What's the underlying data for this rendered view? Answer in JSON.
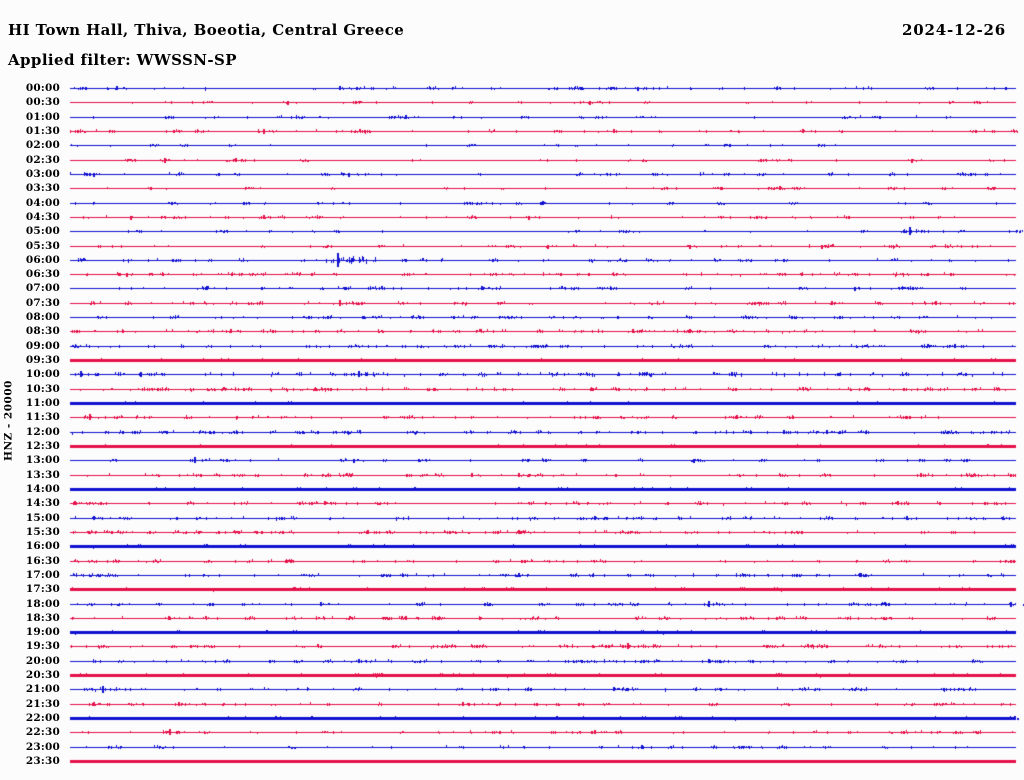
{
  "header": {
    "title": "HI Town Hall, Thiva, Boeotia, Central Greece",
    "date": "2024-12-26",
    "filter": "Applied filter: WWSSN-SP"
  },
  "axis": {
    "channel_label": "HNZ - 20000"
  },
  "colors": {
    "blue": "#1010d0",
    "red": "#e51049",
    "text": "#000000",
    "background": "#fcfcfc"
  },
  "chart_data": {
    "type": "line",
    "subtype": "helicorder-dayplot",
    "title": "HI Town Hall, Thiva, Boeotia, Central Greece",
    "date": "2024-12-26",
    "applied_filter": "WWSSN-SP",
    "channel": "HNZ",
    "scale": 20000,
    "row_duration_minutes": 30,
    "grid": false,
    "legend_position": "none",
    "trace_color_cycle": [
      "blue",
      "red"
    ],
    "rows": [
      {
        "time": "00:00",
        "color": "blue",
        "noise_density": 110,
        "noise_amp": 1.6,
        "bold": false,
        "events": [
          {
            "t": 0.05,
            "amp": 2.5
          },
          {
            "t": 0.285,
            "amp": 2.5
          },
          {
            "t": 0.6,
            "amp": 2
          }
        ]
      },
      {
        "time": "00:30",
        "color": "red",
        "noise_density": 70,
        "noise_amp": 1.4,
        "bold": false,
        "events": [
          {
            "t": 0.23,
            "amp": 2
          },
          {
            "t": 0.55,
            "amp": 2
          }
        ]
      },
      {
        "time": "01:00",
        "color": "blue",
        "noise_density": 80,
        "noise_amp": 1.5,
        "bold": false,
        "events": [
          {
            "t": 0.355,
            "amp": 2.5
          }
        ]
      },
      {
        "time": "01:30",
        "color": "red",
        "noise_density": 100,
        "noise_amp": 1.7,
        "bold": false,
        "events": [
          {
            "t": 0.205,
            "amp": 3
          },
          {
            "t": 0.575,
            "amp": 2.5
          },
          {
            "t": 0.775,
            "amp": 2.5
          }
        ]
      },
      {
        "time": "02:00",
        "color": "blue",
        "noise_density": 60,
        "noise_amp": 1.3,
        "bold": false,
        "events": []
      },
      {
        "time": "02:30",
        "color": "red",
        "noise_density": 65,
        "noise_amp": 1.4,
        "bold": false,
        "events": [
          {
            "t": 0.1,
            "amp": 3
          },
          {
            "t": 0.175,
            "amp": 2.5
          },
          {
            "t": 0.89,
            "amp": 2
          }
        ]
      },
      {
        "time": "03:00",
        "color": "blue",
        "noise_density": 100,
        "noise_amp": 1.6,
        "bold": false,
        "events": [
          {
            "t": 0.025,
            "amp": 2
          },
          {
            "t": 0.295,
            "amp": 2
          }
        ]
      },
      {
        "time": "03:30",
        "color": "red",
        "noise_density": 75,
        "noise_amp": 1.4,
        "bold": false,
        "events": [
          {
            "t": 0.75,
            "amp": 2.5
          }
        ]
      },
      {
        "time": "04:00",
        "color": "blue",
        "noise_density": 75,
        "noise_amp": 1.4,
        "bold": false,
        "events": [
          {
            "t": 0.5,
            "amp": 2.5
          }
        ]
      },
      {
        "time": "04:30",
        "color": "red",
        "noise_density": 90,
        "noise_amp": 1.6,
        "bold": false,
        "events": [
          {
            "t": 0.065,
            "amp": 2
          },
          {
            "t": 0.205,
            "amp": 2.5
          },
          {
            "t": 0.485,
            "amp": 2
          }
        ]
      },
      {
        "time": "05:00",
        "color": "blue",
        "noise_density": 70,
        "noise_amp": 1.4,
        "bold": false,
        "events": [
          {
            "t": 0.888,
            "amp": 4.5
          }
        ]
      },
      {
        "time": "05:30",
        "color": "red",
        "noise_density": 90,
        "noise_amp": 1.6,
        "bold": false,
        "events": [
          {
            "t": 0.505,
            "amp": 2
          },
          {
            "t": 0.655,
            "amp": 2
          },
          {
            "t": 0.795,
            "amp": 2
          }
        ]
      },
      {
        "time": "06:00",
        "color": "blue",
        "noise_density": 120,
        "noise_amp": 1.7,
        "bold": false,
        "events": [
          {
            "t": 0.283,
            "amp": 8
          }
        ]
      },
      {
        "time": "06:30",
        "color": "red",
        "noise_density": 150,
        "noise_amp": 1.7,
        "bold": false,
        "events": [
          {
            "t": 0.06,
            "amp": 2
          }
        ]
      },
      {
        "time": "07:00",
        "color": "blue",
        "noise_density": 120,
        "noise_amp": 1.6,
        "bold": false,
        "events": [
          {
            "t": 0.145,
            "amp": 2.5
          },
          {
            "t": 0.435,
            "amp": 2.5
          },
          {
            "t": 0.83,
            "amp": 2
          }
        ]
      },
      {
        "time": "07:30",
        "color": "red",
        "noise_density": 130,
        "noise_amp": 1.7,
        "bold": false,
        "events": [
          {
            "t": 0.285,
            "amp": 3.5
          },
          {
            "t": 0.805,
            "amp": 2.5
          },
          {
            "t": 0.915,
            "amp": 2.5
          }
        ]
      },
      {
        "time": "08:00",
        "color": "blue",
        "noise_density": 160,
        "noise_amp": 1.5,
        "bold": false,
        "events": []
      },
      {
        "time": "08:30",
        "color": "red",
        "noise_density": 150,
        "noise_amp": 1.7,
        "bold": false,
        "events": [
          {
            "t": 0.17,
            "amp": 2.5
          },
          {
            "t": 0.595,
            "amp": 2.5
          },
          {
            "t": 0.655,
            "amp": 2.5
          }
        ]
      },
      {
        "time": "09:00",
        "color": "blue",
        "noise_density": 180,
        "noise_amp": 1.6,
        "bold": false,
        "events": [
          {
            "t": 0.935,
            "amp": 2.5
          }
        ]
      },
      {
        "time": "09:30",
        "color": "red",
        "noise_density": 170,
        "noise_amp": 1.5,
        "bold": true,
        "events": []
      },
      {
        "time": "10:00",
        "color": "blue",
        "noise_density": 170,
        "noise_amp": 2.0,
        "bold": false,
        "events": [
          {
            "t": 0.012,
            "amp": 3.5
          },
          {
            "t": 0.075,
            "amp": 3
          },
          {
            "t": 0.305,
            "amp": 3.5
          }
        ]
      },
      {
        "time": "10:30",
        "color": "red",
        "noise_density": 210,
        "noise_amp": 1.7,
        "bold": false,
        "events": []
      },
      {
        "time": "11:00",
        "color": "blue",
        "noise_density": 170,
        "noise_amp": 1.5,
        "bold": true,
        "events": []
      },
      {
        "time": "11:30",
        "color": "red",
        "noise_density": 120,
        "noise_amp": 1.6,
        "bold": false,
        "events": [
          {
            "t": 0.021,
            "amp": 3.5
          },
          {
            "t": 0.705,
            "amp": 2.5
          }
        ]
      },
      {
        "time": "12:00",
        "color": "blue",
        "noise_density": 210,
        "noise_amp": 1.7,
        "bold": false,
        "events": [
          {
            "t": 0.8,
            "amp": 2.5
          }
        ]
      },
      {
        "time": "12:30",
        "color": "red",
        "noise_density": 160,
        "noise_amp": 1.5,
        "bold": true,
        "events": [
          {
            "t": 0.97,
            "amp": 2.5
          }
        ]
      },
      {
        "time": "13:00",
        "color": "blue",
        "noise_density": 100,
        "noise_amp": 1.5,
        "bold": false,
        "events": [
          {
            "t": 0.132,
            "amp": 3.5
          },
          {
            "t": 0.3,
            "amp": 2
          },
          {
            "t": 0.66,
            "amp": 2
          }
        ]
      },
      {
        "time": "13:30",
        "color": "red",
        "noise_density": 150,
        "noise_amp": 1.6,
        "bold": false,
        "events": [
          {
            "t": 0.425,
            "amp": 2.5
          },
          {
            "t": 0.475,
            "amp": 2.5
          },
          {
            "t": 0.9,
            "amp": 2.5
          }
        ]
      },
      {
        "time": "14:00",
        "color": "blue",
        "noise_density": 180,
        "noise_amp": 1.6,
        "bold": true,
        "events": [
          {
            "t": 0.365,
            "amp": 2.5
          },
          {
            "t": 0.475,
            "amp": 2.5
          }
        ]
      },
      {
        "time": "14:30",
        "color": "red",
        "noise_density": 140,
        "noise_amp": 1.6,
        "bold": false,
        "events": [
          {
            "t": 0.005,
            "amp": 2.5
          },
          {
            "t": 0.27,
            "amp": 2.5
          },
          {
            "t": 0.875,
            "amp": 2.5
          }
        ]
      },
      {
        "time": "15:00",
        "color": "blue",
        "noise_density": 140,
        "noise_amp": 1.6,
        "bold": false,
        "events": [
          {
            "t": 0.025,
            "amp": 2.5
          },
          {
            "t": 0.555,
            "amp": 2.5
          },
          {
            "t": 0.885,
            "amp": 2.5
          }
        ]
      },
      {
        "time": "15:30",
        "color": "red",
        "noise_density": 180,
        "noise_amp": 1.6,
        "bold": false,
        "events": [
          {
            "t": 0.315,
            "amp": 2.5
          },
          {
            "t": 0.475,
            "amp": 2.5
          }
        ]
      },
      {
        "time": "16:00",
        "color": "blue",
        "noise_density": 210,
        "noise_amp": 1.6,
        "bold": true,
        "events": []
      },
      {
        "time": "16:30",
        "color": "red",
        "noise_density": 130,
        "noise_amp": 1.5,
        "bold": false,
        "events": []
      },
      {
        "time": "17:00",
        "color": "blue",
        "noise_density": 150,
        "noise_amp": 1.6,
        "bold": false,
        "events": [
          {
            "t": 0.475,
            "amp": 2.5
          },
          {
            "t": 0.835,
            "amp": 2.5
          }
        ]
      },
      {
        "time": "17:30",
        "color": "red",
        "noise_density": 210,
        "noise_amp": 1.6,
        "bold": true,
        "events": []
      },
      {
        "time": "18:00",
        "color": "blue",
        "noise_density": 130,
        "noise_amp": 1.6,
        "bold": false,
        "events": [
          {
            "t": 0.265,
            "amp": 2.5
          },
          {
            "t": 0.675,
            "amp": 3.5
          },
          {
            "t": 0.995,
            "amp": 3
          }
        ]
      },
      {
        "time": "18:30",
        "color": "red",
        "noise_density": 160,
        "noise_amp": 1.6,
        "bold": false,
        "events": [
          {
            "t": 0.105,
            "amp": 2.5
          },
          {
            "t": 0.355,
            "amp": 2.5
          }
        ]
      },
      {
        "time": "19:00",
        "color": "blue",
        "noise_density": 190,
        "noise_amp": 1.6,
        "bold": true,
        "events": []
      },
      {
        "time": "19:30",
        "color": "red",
        "noise_density": 180,
        "noise_amp": 1.6,
        "bold": false,
        "events": [
          {
            "t": 0.59,
            "amp": 3.5
          }
        ]
      },
      {
        "time": "20:00",
        "color": "blue",
        "noise_density": 150,
        "noise_amp": 1.6,
        "bold": false,
        "events": [
          {
            "t": 0.305,
            "amp": 2.5
          },
          {
            "t": 0.675,
            "amp": 2.5
          }
        ]
      },
      {
        "time": "20:30",
        "color": "red",
        "noise_density": 210,
        "noise_amp": 1.6,
        "bold": true,
        "events": []
      },
      {
        "time": "21:00",
        "color": "blue",
        "noise_density": 130,
        "noise_amp": 1.6,
        "bold": false,
        "events": [
          {
            "t": 0.035,
            "amp": 4
          },
          {
            "t": 0.575,
            "amp": 2.5
          }
        ]
      },
      {
        "time": "21:30",
        "color": "red",
        "noise_density": 100,
        "noise_amp": 1.5,
        "bold": false,
        "events": [
          {
            "t": 0.025,
            "amp": 2.5
          },
          {
            "t": 0.115,
            "amp": 2.5
          },
          {
            "t": 0.415,
            "amp": 2.5
          }
        ]
      },
      {
        "time": "22:00",
        "color": "blue",
        "noise_density": 190,
        "noise_amp": 1.6,
        "bold": true,
        "events": [
          {
            "t": 0.515,
            "amp": 2.5
          }
        ]
      },
      {
        "time": "22:30",
        "color": "red",
        "noise_density": 110,
        "noise_amp": 1.5,
        "bold": false,
        "events": [
          {
            "t": 0.106,
            "amp": 3.5
          },
          {
            "t": 0.555,
            "amp": 2.5
          }
        ]
      },
      {
        "time": "23:00",
        "color": "blue",
        "noise_density": 90,
        "noise_amp": 1.5,
        "bold": false,
        "events": [
          {
            "t": 0.605,
            "amp": 2.5
          }
        ]
      },
      {
        "time": "23:30",
        "color": "red",
        "noise_density": 430,
        "noise_amp": 1.4,
        "bold": true,
        "events": []
      }
    ]
  }
}
